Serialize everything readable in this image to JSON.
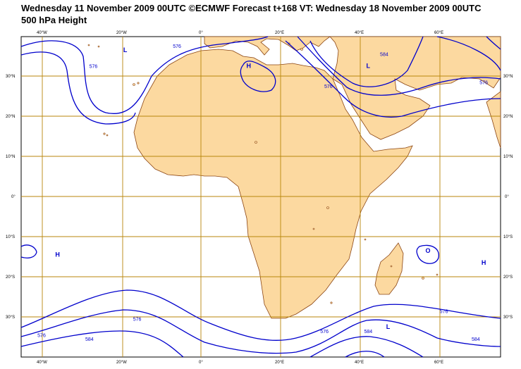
{
  "header": {
    "line1": "Wednesday 11 November 2009 00UTC ©ECMWF Forecast t+168 VT: Wednesday 18 November 2009 00UTC",
    "line2": "500 hPa Height"
  },
  "axes": {
    "lon_labels": [
      "40°W",
      "20°W",
      "0°",
      "20°E",
      "40°E",
      "60°E"
    ],
    "lat_labels": [
      "30°N",
      "20°N",
      "10°N",
      "0°",
      "10°S",
      "20°S",
      "30°S"
    ]
  },
  "pressure_centers": [
    {
      "label": "H",
      "lon": 12,
      "lat": 32
    },
    {
      "label": "L",
      "lon": -19,
      "lat": 36
    },
    {
      "label": "L",
      "lon": 42,
      "lat": 32
    },
    {
      "label": "H",
      "lon": -36,
      "lat": -15
    },
    {
      "label": "O",
      "lon": 57,
      "lat": -14
    },
    {
      "label": "H",
      "lon": 71,
      "lat": -17
    },
    {
      "label": "L",
      "lon": 47,
      "lat": -33
    }
  ],
  "contour_labels": [
    {
      "text": "576",
      "lon": -27,
      "lat": 32
    },
    {
      "text": "576",
      "lon": -6,
      "lat": 37
    },
    {
      "text": "576",
      "lon": 32,
      "lat": 27
    },
    {
      "text": "584",
      "lon": 46,
      "lat": 35
    },
    {
      "text": "576",
      "lon": 71,
      "lat": 28
    },
    {
      "text": "576",
      "lon": -16,
      "lat": -31
    },
    {
      "text": "576",
      "lon": -40,
      "lat": -35
    },
    {
      "text": "584",
      "lon": -28,
      "lat": -36
    },
    {
      "text": "576",
      "lon": 31,
      "lat": -34
    },
    {
      "text": "584",
      "lon": 42,
      "lat": -34
    },
    {
      "text": "576",
      "lon": 61,
      "lat": -29
    },
    {
      "text": "584",
      "lon": 69,
      "lat": -36
    }
  ],
  "colors": {
    "land": "#fcd9a0",
    "coast": "#8b4513",
    "grid": "#b8860b",
    "contour": "#0000cc"
  }
}
